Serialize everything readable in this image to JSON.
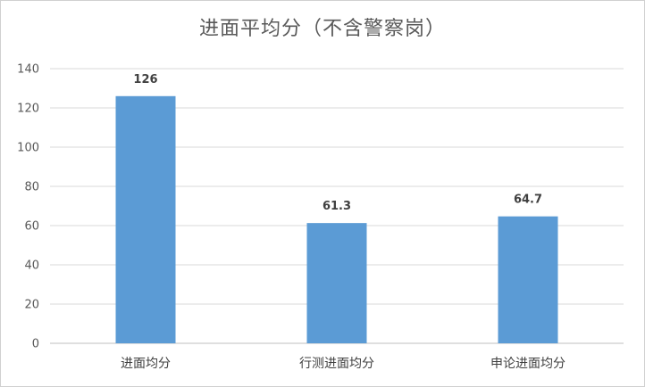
{
  "chart_data": {
    "type": "bar",
    "title": "进面平均分（不含警察岗）",
    "xlabel": "",
    "ylabel": "",
    "categories": [
      "进面均分",
      "行测进面均分",
      "申论进面均分"
    ],
    "values": [
      126,
      61.3,
      64.7
    ],
    "data_labels": [
      "126",
      "61.3",
      "64.7"
    ],
    "ylim": [
      0,
      140
    ],
    "yticks": [
      0,
      20,
      40,
      60,
      80,
      100,
      120,
      140
    ],
    "grid": true,
    "legend": "none",
    "bar_color": "#5b9bd5",
    "grid_color": "#d9d9d9"
  }
}
